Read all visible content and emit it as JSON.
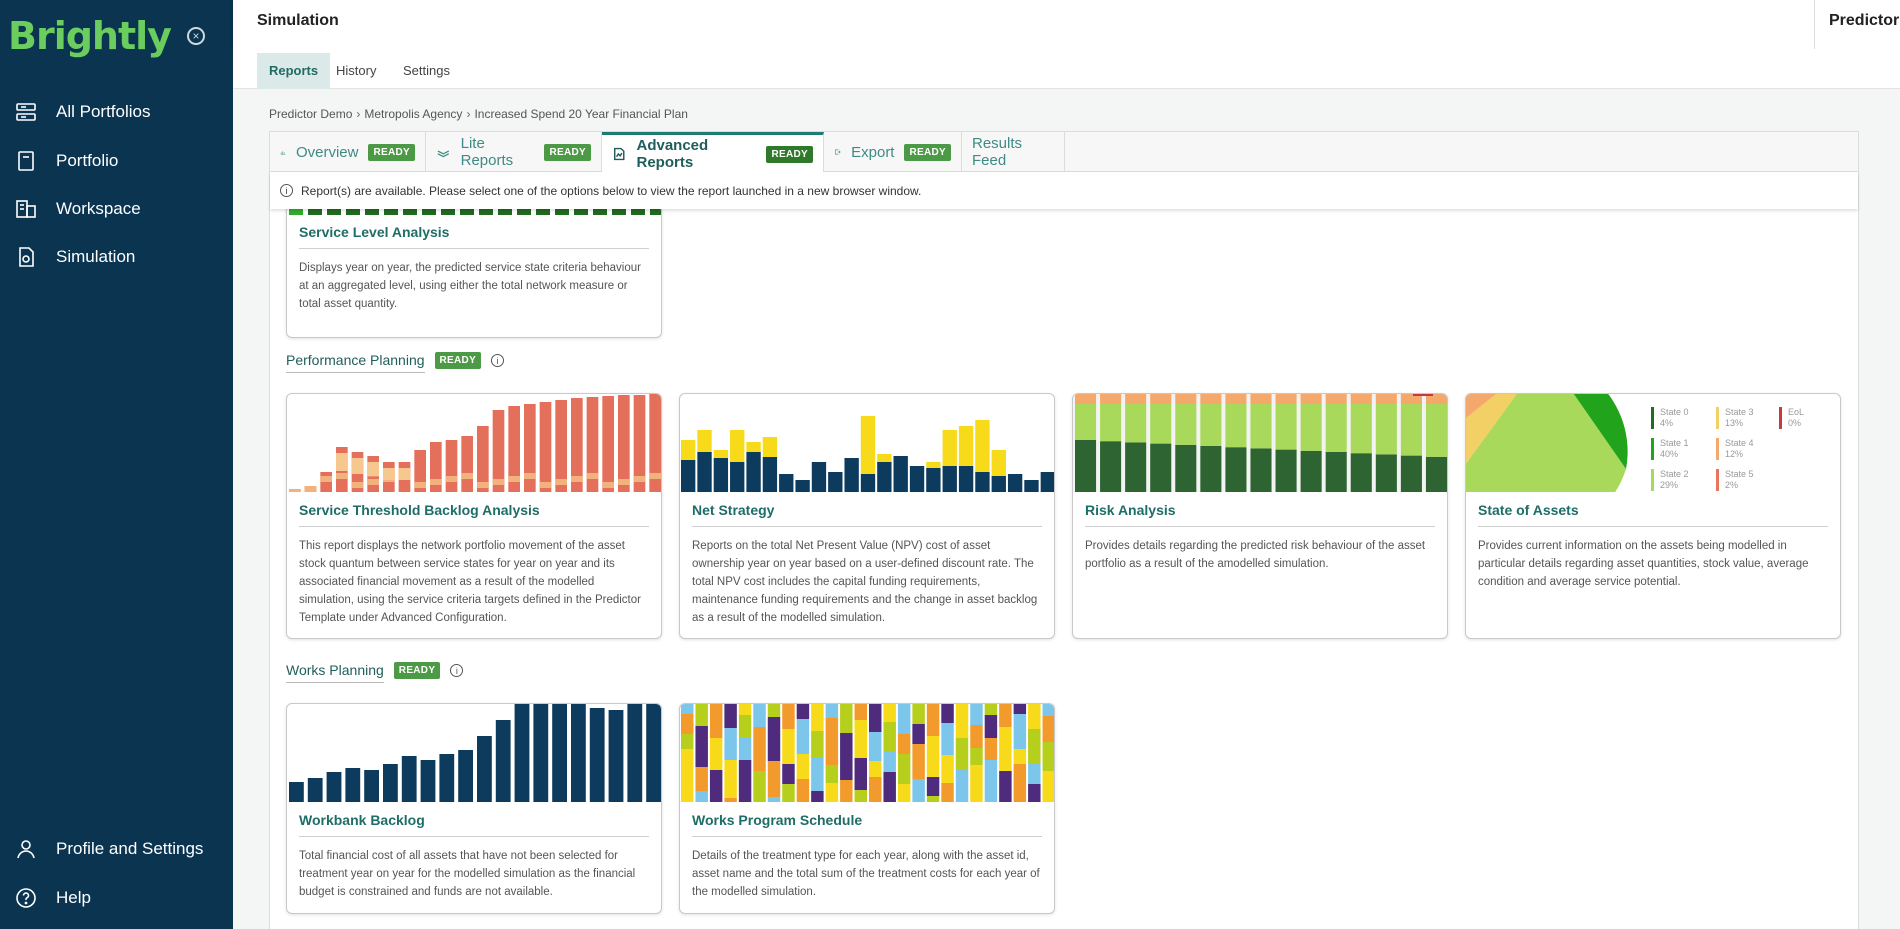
{
  "app": {
    "brand": "Brightly",
    "page_title": "Simulation",
    "product": "Predictor"
  },
  "sidebar": {
    "items": [
      {
        "label": "All Portfolios",
        "icon": "portfolios-icon"
      },
      {
        "label": "Portfolio",
        "icon": "book-icon"
      },
      {
        "label": "Workspace",
        "icon": "workspace-icon"
      },
      {
        "label": "Simulation",
        "icon": "simulation-icon"
      }
    ],
    "bottom": [
      {
        "label": "Profile and Settings",
        "icon": "user-icon"
      },
      {
        "label": "Help",
        "icon": "help-icon"
      }
    ]
  },
  "subtabs": [
    "Reports",
    "History",
    "Settings"
  ],
  "breadcrumb": [
    "Predictor Demo",
    "Metropolis Agency",
    "Increased Spend 20 Year Financial Plan"
  ],
  "report_tabs": [
    {
      "label": "Overview",
      "badge": "READY"
    },
    {
      "label": "Lite Reports",
      "badge": "READY"
    },
    {
      "label": "Advanced Reports",
      "badge": "READY"
    },
    {
      "label": "Export",
      "badge": "READY"
    },
    {
      "label": "Results Feed"
    }
  ],
  "notice": "Report(s) are available. Please select one of the options below to view the report launched in a new browser window.",
  "cards": {
    "service_level": {
      "title": "Service Level Analysis",
      "desc": "Displays year on year, the predicted service state criteria behaviour at an aggregated level, using either the total network measure or total asset quantity."
    },
    "threshold": {
      "title": "Service Threshold Backlog Analysis",
      "desc": "This report displays the network portfolio movement of the asset stock quantum between service states for year on year and its associated financial movement as a result of the modelled simulation, using the service criteria targets defined in the Predictor Template under Advanced Configuration."
    },
    "net_strategy": {
      "title": "Net Strategy",
      "desc": "Reports on the total Net Present Value (NPV) cost of asset ownership year on year based on a user-defined discount rate. The total NPV cost includes the capital funding requirements, maintenance funding requirements and the change in asset backlog as a result of the modelled simulation."
    },
    "risk": {
      "title": "Risk Analysis",
      "desc": "Provides details regarding the predicted risk behaviour of the asset portfolio as a result of the amodelled simulation."
    },
    "state": {
      "title": "State of Assets",
      "desc": "Provides current information on the assets being modelled in particular details regarding asset quantities, stock value, average condition and average service potential."
    },
    "workbank": {
      "title": "Workbank Backlog",
      "desc": "Total financial cost of all assets that have not been selected for treatment year on year for the modelled simulation as the financial budget is constrained and funds are not available."
    },
    "works_program": {
      "title": "Works Program Schedule",
      "desc": "Details of the treatment type for each year, along with the asset id, asset name and the total sum of the treatment costs for each year of the modelled simulation."
    }
  },
  "sections": {
    "performance": {
      "title": "Performance Planning",
      "badge": "READY"
    },
    "works": {
      "title": "Works Planning",
      "badge": "READY"
    }
  },
  "pie_legend": [
    {
      "label": "State 0",
      "value": "4%",
      "color": "#1f6d22"
    },
    {
      "label": "State 1",
      "value": "40%",
      "color": "#22a31c"
    },
    {
      "label": "State 2",
      "value": "29%",
      "color": "#a8d95a"
    },
    {
      "label": "State 3",
      "value": "13%",
      "color": "#f2d065"
    },
    {
      "label": "State 4",
      "value": "12%",
      "color": "#f4a86b"
    },
    {
      "label": "State 5",
      "value": "2%",
      "color": "#e8765f"
    },
    {
      "label": "EoL",
      "value": "0%",
      "color": "#c83a3a"
    }
  ]
}
